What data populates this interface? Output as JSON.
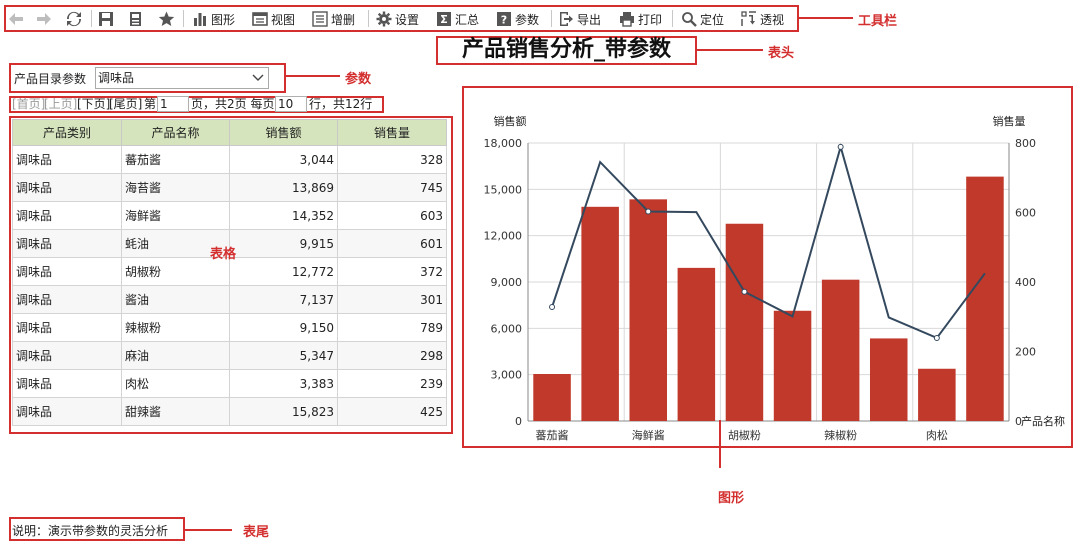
{
  "toolbar": {
    "items": [
      {
        "label": "图形",
        "icon": "bar-chart-icon"
      },
      {
        "label": "视图",
        "icon": "view-icon"
      },
      {
        "label": "增删",
        "icon": "add-remove-icon"
      },
      {
        "label": "设置",
        "icon": "gear-icon"
      },
      {
        "label": "汇总",
        "icon": "sum-icon"
      },
      {
        "label": "参数",
        "icon": "question-icon"
      },
      {
        "label": "导出",
        "icon": "export-icon"
      },
      {
        "label": "打印",
        "icon": "print-icon"
      },
      {
        "label": "定位",
        "icon": "locate-icon"
      },
      {
        "label": "透视",
        "icon": "pivot-icon"
      }
    ]
  },
  "report": {
    "title": "产品销售分析_带参数",
    "footer": "说明：演示带参数的灵活分析"
  },
  "params": {
    "label": "产品目录参数",
    "value": "调味品"
  },
  "pager": {
    "first": "[首页]",
    "prev": "[上页]",
    "next": "[下页]",
    "last": "[尾页]",
    "page_prefix": "第",
    "page_value": "1",
    "page_suffix": "页，共2页 每页",
    "per_page_value": "10",
    "rows_suffix": "行，共12行"
  },
  "table": {
    "headers": [
      "产品类别",
      "产品名称",
      "销售额",
      "销售量"
    ],
    "rows": [
      [
        "调味品",
        "蕃茄酱",
        "3,044",
        "328"
      ],
      [
        "调味品",
        "海苔酱",
        "13,869",
        "745"
      ],
      [
        "调味品",
        "海鲜酱",
        "14,352",
        "603"
      ],
      [
        "调味品",
        "蚝油",
        "9,915",
        "601"
      ],
      [
        "调味品",
        "胡椒粉",
        "12,772",
        "372"
      ],
      [
        "调味品",
        "酱油",
        "7,137",
        "301"
      ],
      [
        "调味品",
        "辣椒粉",
        "9,150",
        "789"
      ],
      [
        "调味品",
        "麻油",
        "5,347",
        "298"
      ],
      [
        "调味品",
        "肉松",
        "3,383",
        "239"
      ],
      [
        "调味品",
        "甜辣酱",
        "15,823",
        "425"
      ]
    ]
  },
  "annotations": {
    "toolbar": "工具栏",
    "title": "表头",
    "params": "参数",
    "table": "表格",
    "chart": "图形",
    "footer": "表尾"
  },
  "colors": {
    "annotation": "#d32f2f",
    "bar": "#c0392b",
    "line": "#34495e",
    "table_header": "#d6e4bd"
  },
  "chart_data": {
    "type": "bar",
    "categories": [
      "蕃茄酱",
      "海苔酱",
      "海鲜酱",
      "蚝油",
      "胡椒粉",
      "酱油",
      "辣椒粉",
      "麻油",
      "肉松",
      "甜辣酱"
    ],
    "tick_labels": [
      "蕃茄酱",
      "海鲜酱",
      "胡椒粉",
      "辣椒粉",
      "肉松"
    ],
    "series": [
      {
        "name": "销售额",
        "type": "bar",
        "axis": "left",
        "values": [
          3044,
          13869,
          14352,
          9915,
          12772,
          7137,
          9150,
          5347,
          3383,
          15823
        ]
      },
      {
        "name": "销售量",
        "type": "line",
        "axis": "right",
        "values": [
          328,
          745,
          603,
          601,
          372,
          301,
          789,
          298,
          239,
          425
        ]
      }
    ],
    "ylabel_left": "销售额",
    "ylabel_right": "销售量",
    "xlabel": "产品名称",
    "ylim_left": [
      0,
      18000
    ],
    "ylim_right": [
      0,
      800
    ],
    "yticks_left": [
      "0",
      "3,000",
      "6,000",
      "9,000",
      "12,000",
      "15,000",
      "18,000"
    ],
    "yticks_right": [
      "0",
      "200",
      "400",
      "600",
      "800"
    ],
    "grid": true
  }
}
